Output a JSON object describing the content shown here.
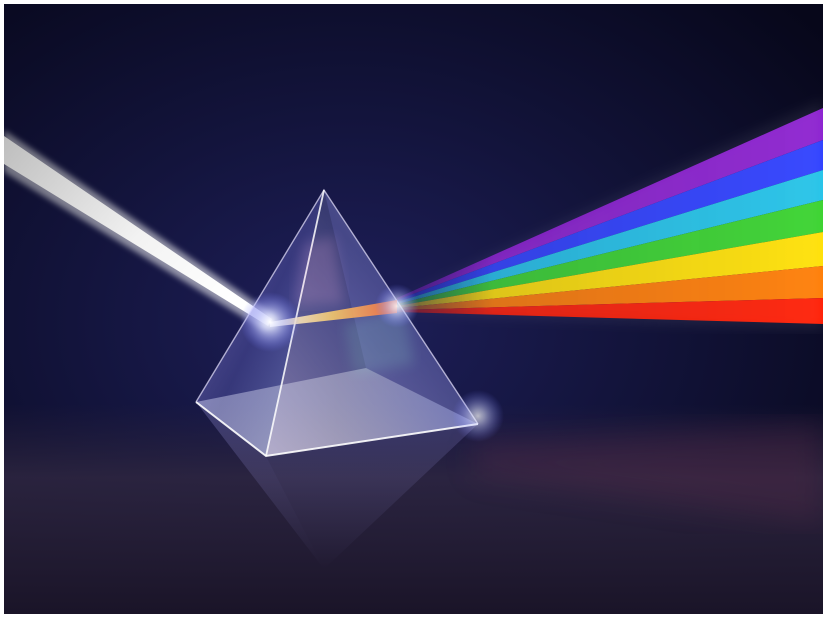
{
  "image": {
    "subject": "prism-dispersion-illustration",
    "colors": {
      "background_top": "#0c0b22",
      "background_mid": "#13143c",
      "floor": "#2a233d",
      "incoming_beam": "#e8e8e8",
      "spectrum": [
        "#ff1a00",
        "#ff7a00",
        "#ffe000",
        "#35d22a",
        "#1fc2e8",
        "#2a3cff",
        "#8a1ccf"
      ]
    }
  }
}
